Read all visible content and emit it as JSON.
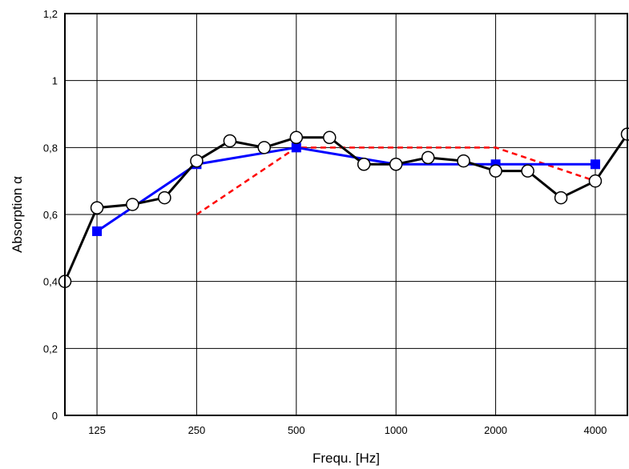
{
  "chart_data": {
    "type": "line",
    "xlabel": "Frequ. [Hz]",
    "ylabel": "Absorption α",
    "x_scale": "log",
    "xlim": [
      100,
      5000
    ],
    "ylim": [
      0,
      1.2
    ],
    "x_ticks": [
      {
        "value": 125,
        "label": "125"
      },
      {
        "value": 250,
        "label": "250"
      },
      {
        "value": 500,
        "label": "500"
      },
      {
        "value": 1000,
        "label": "1000"
      },
      {
        "value": 2000,
        "label": "2000"
      },
      {
        "value": 4000,
        "label": "4000"
      }
    ],
    "y_ticks": [
      {
        "value": 0,
        "label": "0"
      },
      {
        "value": 0.2,
        "label": "0,2"
      },
      {
        "value": 0.4,
        "label": "0,4"
      },
      {
        "value": 0.6,
        "label": "0,6"
      },
      {
        "value": 0.8,
        "label": "0,8"
      },
      {
        "value": 1.0,
        "label": "1"
      },
      {
        "value": 1.2,
        "label": "1,2"
      }
    ],
    "grid": true,
    "legend": "none",
    "series": [
      {
        "color": "#000000",
        "marker": "open-circle",
        "line_style": "solid",
        "x": [
          100,
          125,
          160,
          200,
          250,
          315,
          400,
          500,
          630,
          800,
          1000,
          1250,
          1600,
          2000,
          2500,
          3150,
          4000,
          5000
        ],
        "y": [
          0.4,
          0.62,
          0.63,
          0.65,
          0.76,
          0.82,
          0.8,
          0.83,
          0.83,
          0.75,
          0.75,
          0.77,
          0.76,
          0.73,
          0.73,
          0.65,
          0.7,
          0.84
        ]
      },
      {
        "color": "#0000ff",
        "marker": "filled-square",
        "line_style": "solid",
        "x": [
          125,
          250,
          500,
          1000,
          2000,
          4000
        ],
        "y": [
          0.55,
          0.75,
          0.8,
          0.75,
          0.75,
          0.75
        ]
      },
      {
        "color": "#ff0000",
        "marker": "none",
        "line_style": "dashed",
        "x": [
          250,
          500,
          2000,
          4000
        ],
        "y": [
          0.6,
          0.8,
          0.8,
          0.7
        ]
      }
    ]
  }
}
